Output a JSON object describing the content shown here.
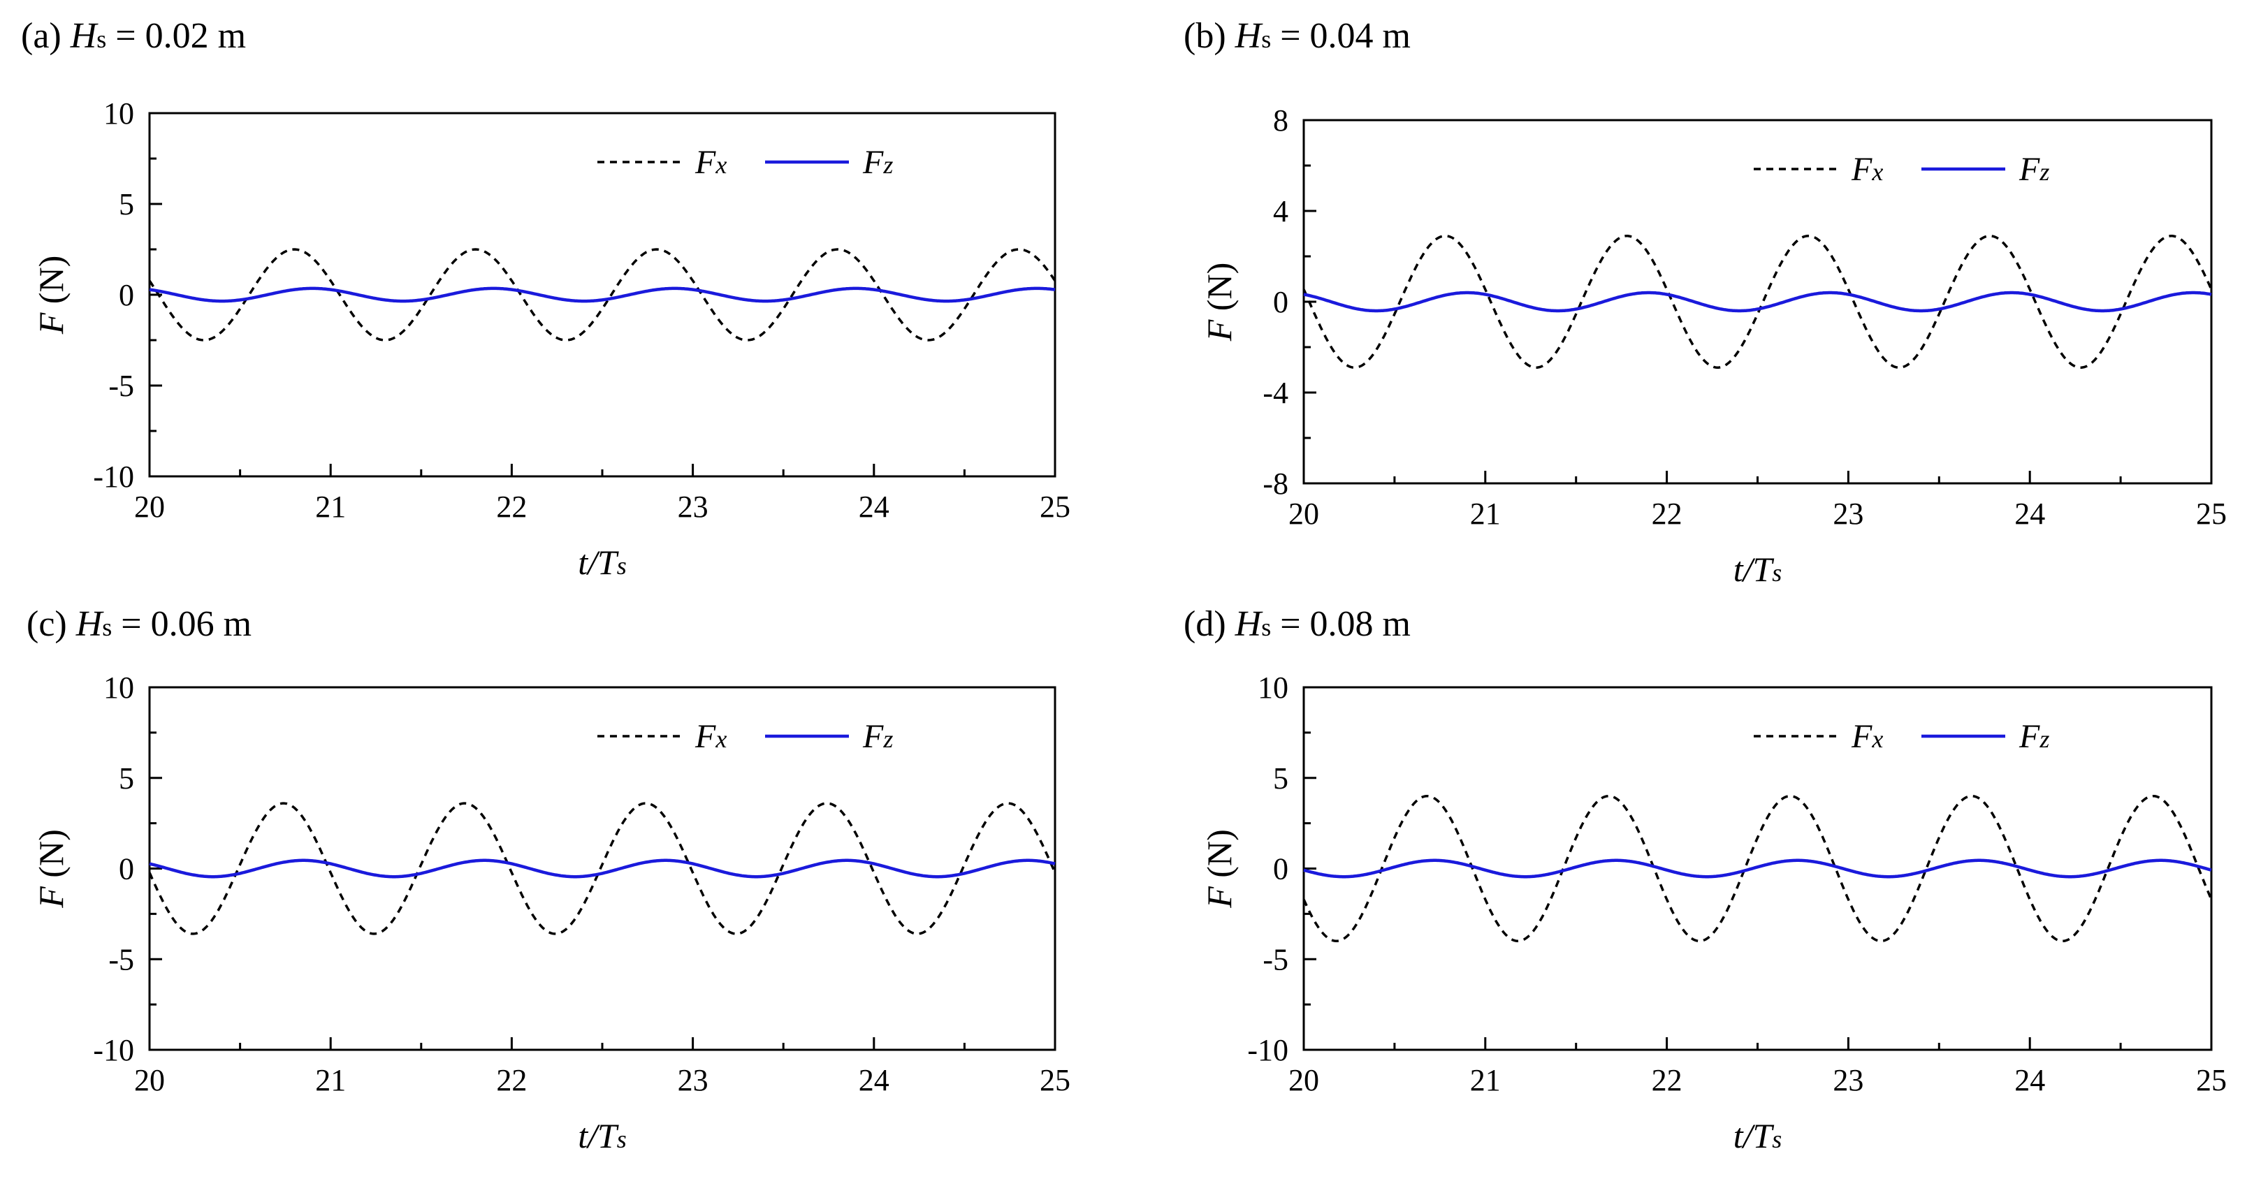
{
  "chart_data": [
    {
      "type": "line",
      "panel": "(a)",
      "hs_label": "Hs",
      "hs_value": "= 0.02 m",
      "xlabel": "t/Ts",
      "ylabel": "F (N)",
      "xlim": [
        20,
        25
      ],
      "ylim": [
        -10,
        10
      ],
      "xticks": [
        "20",
        "21",
        "22",
        "23",
        "24",
        "25"
      ],
      "yticks": [
        "10",
        "5",
        "0",
        "-5",
        "-10"
      ],
      "legend": "top-right",
      "series": [
        {
          "name": "Fx",
          "style": "dashed",
          "color": "#000000",
          "amplitude": 2.5,
          "phase_peak": 0.8
        },
        {
          "name": "Fz",
          "style": "solid",
          "color": "#1a1adc",
          "amplitude": 0.35,
          "phase_peak": 0.9
        }
      ]
    },
    {
      "type": "line",
      "panel": "(b)",
      "hs_label": "Hs",
      "hs_value": "= 0.04 m",
      "xlabel": "t/Ts",
      "ylabel": "F (N)",
      "xlim": [
        20,
        25
      ],
      "ylim": [
        -8,
        8
      ],
      "xticks": [
        "20",
        "21",
        "22",
        "23",
        "24",
        "25"
      ],
      "yticks": [
        "8",
        "4",
        "0",
        "-4",
        "-8"
      ],
      "legend": "top-right",
      "series": [
        {
          "name": "Fx",
          "style": "dashed",
          "color": "#000000",
          "amplitude": 2.9,
          "phase_peak": 0.78
        },
        {
          "name": "Fz",
          "style": "solid",
          "color": "#1a1adc",
          "amplitude": 0.4,
          "phase_peak": 0.9
        }
      ]
    },
    {
      "type": "line",
      "panel": "(c)",
      "hs_label": "Hs",
      "hs_value": "= 0.06 m",
      "xlabel": "t/Ts",
      "ylabel": "F (N)",
      "xlim": [
        20,
        25
      ],
      "ylim": [
        -10,
        10
      ],
      "xticks": [
        "20",
        "21",
        "22",
        "23",
        "24",
        "25"
      ],
      "yticks": [
        "10",
        "5",
        "0",
        "-5",
        "-10"
      ],
      "legend": "top-right",
      "series": [
        {
          "name": "Fx",
          "style": "dashed",
          "color": "#000000",
          "amplitude": 3.6,
          "phase_peak": 0.74
        },
        {
          "name": "Fz",
          "style": "solid",
          "color": "#1a1adc",
          "amplitude": 0.45,
          "phase_peak": 0.85
        }
      ]
    },
    {
      "type": "line",
      "panel": "(d)",
      "hs_label": "Hs",
      "hs_value": "= 0.08 m",
      "xlabel": "t/Ts",
      "ylabel": "F (N)",
      "xlim": [
        20,
        25
      ],
      "ylim": [
        -10,
        10
      ],
      "xticks": [
        "20",
        "21",
        "22",
        "23",
        "24",
        "25"
      ],
      "yticks": [
        "10",
        "5",
        "0",
        "-5",
        "-10"
      ],
      "legend": "top-right",
      "series": [
        {
          "name": "Fx",
          "style": "dashed",
          "color": "#000000",
          "amplitude": 4.0,
          "phase_peak": 0.68
        },
        {
          "name": "Fz",
          "style": "solid",
          "color": "#1a1adc",
          "amplitude": 0.45,
          "phase_peak": 0.72
        }
      ]
    }
  ]
}
